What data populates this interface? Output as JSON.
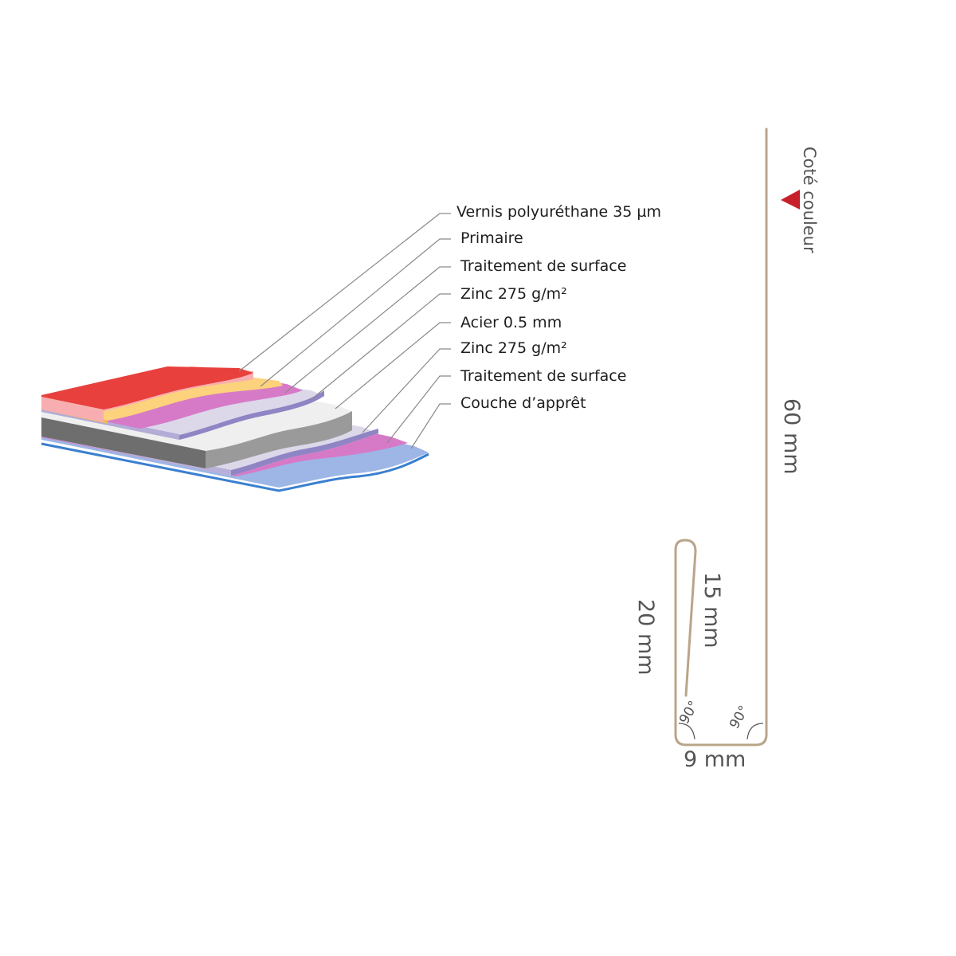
{
  "layers": [
    {
      "label": "Vernis polyuréthane 35 µm",
      "color": "#e8403c"
    },
    {
      "label": "Primaire",
      "color": "#f8aeb0"
    },
    {
      "label": "Traitement de surface",
      "color": "#fcd27c"
    },
    {
      "label": "Zinc 275 g/m²",
      "color": "#d67ac8"
    },
    {
      "label": "Acier 0.5 mm",
      "color": "#9a9a9a"
    },
    {
      "label": "Zinc 275 g/m²",
      "color": "#dcd8ea"
    },
    {
      "label": "Traitement de surface",
      "color": "#d67ac8"
    },
    {
      "label": "Couche d’apprêt",
      "color": "#9db6e6"
    }
  ],
  "profile": {
    "color_side_label": "Coté couleur",
    "color_side_marker_color": "#c8202a",
    "height_label": "60 mm",
    "hem_label": "15 mm",
    "return_label": "20 mm",
    "base_label": "9 mm",
    "angle_left": "90°",
    "angle_right": "90°",
    "stroke_color": "#b9a58a"
  }
}
